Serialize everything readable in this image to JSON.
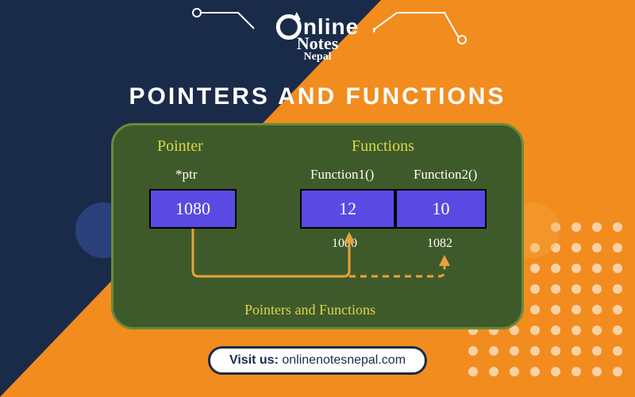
{
  "colors": {
    "navy": "#1a2b4a",
    "orange": "#f28c1e",
    "diagram_bg": "#3f5a2a",
    "diagram_border": "#6a8a3a",
    "box_fill": "#5a4ae3",
    "heading_yellow": "#d8d84a",
    "arrow": "#e8a23a",
    "white": "#ffffff",
    "side_blue": "#4a6ad8",
    "side_orange": "#f5a843"
  },
  "logo": {
    "line1": "nline",
    "line2": "Notes",
    "line3": "Nepal"
  },
  "title": "POINTERS AND FUNCTIONS",
  "diagram": {
    "heading_left": "Pointer",
    "heading_right": "Functions",
    "ptr_label": "*ptr",
    "fn1_label": "Function1()",
    "fn2_label": "Function2()",
    "ptr_value": "1080",
    "fn1_value": "12",
    "fn2_value": "10",
    "fn1_addr": "1080",
    "fn2_addr": "1082",
    "caption": "Pointers and Functions"
  },
  "visit": {
    "label": "Visit us:",
    "url": "onlinenotesnepal.com"
  }
}
